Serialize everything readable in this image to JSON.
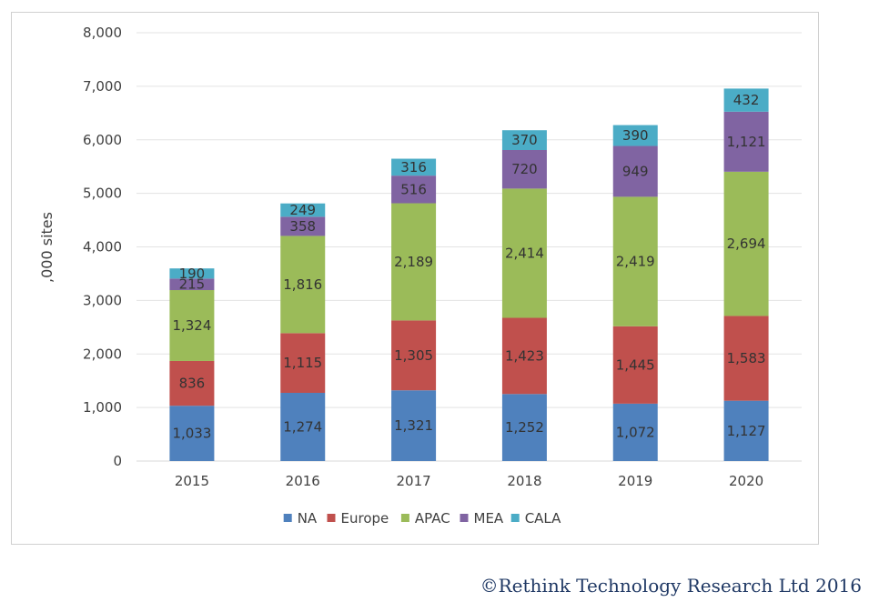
{
  "chart_data": {
    "type": "bar",
    "stacked": true,
    "title": "",
    "xlabel": "",
    "ylabel": ",000 sites",
    "ylim": [
      0,
      8000
    ],
    "yticks": [
      0,
      1000,
      2000,
      3000,
      4000,
      5000,
      6000,
      7000,
      8000
    ],
    "ytick_labels": [
      "0",
      "1,000",
      "2,000",
      "3,000",
      "4,000",
      "5,000",
      "6,000",
      "7,000",
      "8,000"
    ],
    "categories": [
      "2015",
      "2016",
      "2017",
      "2018",
      "2019",
      "2020"
    ],
    "grid": true,
    "legend_position": "bottom",
    "series": [
      {
        "name": "NA",
        "color": "#4f81bd",
        "values": [
          1033,
          1274,
          1321,
          1252,
          1072,
          1127
        ],
        "labels": [
          "1,033",
          "1,274",
          "1,321",
          "1,252",
          "1,072",
          "1,127"
        ]
      },
      {
        "name": "Europe",
        "color": "#c0504d",
        "values": [
          836,
          1115,
          1305,
          1423,
          1445,
          1583
        ],
        "labels": [
          "836",
          "1,115",
          "1,305",
          "1,423",
          "1,445",
          "1,583"
        ]
      },
      {
        "name": "APAC",
        "color": "#9bbb59",
        "values": [
          1324,
          1816,
          2189,
          2414,
          2419,
          2694
        ],
        "labels": [
          "1,324",
          "1,816",
          "2,189",
          "2,414",
          "2,419",
          "2,694"
        ]
      },
      {
        "name": "MEA",
        "color": "#8064a2",
        "values": [
          215,
          358,
          516,
          720,
          949,
          1121
        ],
        "labels": [
          "215",
          "358",
          "516",
          "720",
          "949",
          "1,121"
        ]
      },
      {
        "name": "CALA",
        "color": "#4bacc6",
        "values": [
          190,
          249,
          316,
          370,
          390,
          432
        ],
        "labels": [
          "190",
          "249",
          "316",
          "370",
          "390",
          "432"
        ]
      }
    ]
  },
  "footer": {
    "copyright": "©Rethink Technology Research Ltd 2016"
  }
}
